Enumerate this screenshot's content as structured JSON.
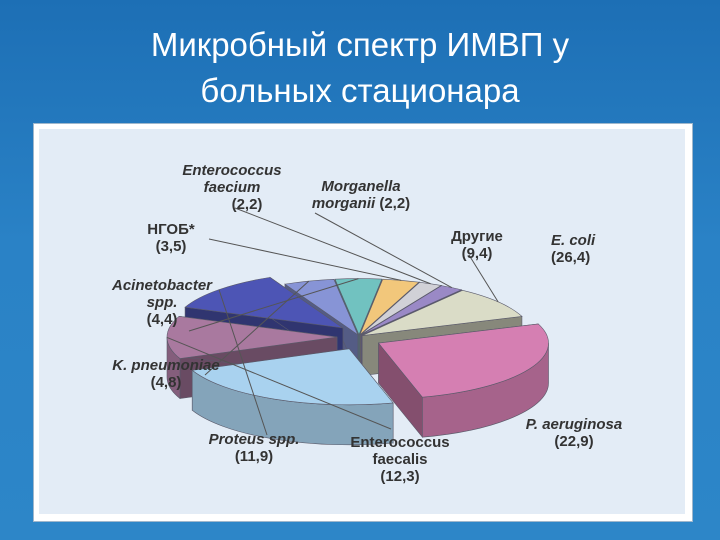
{
  "slide": {
    "title_line1": "Микробный спектр ИМВП у",
    "title_line2": "больных стационара"
  },
  "chart_data": {
    "type": "pie",
    "style": "3d-exploded",
    "slices": [
      {
        "label_lines": [
          "E. coli"
        ],
        "value": 26.4,
        "value_text": "(26,4)",
        "italic": true,
        "color": "#d57fb2"
      },
      {
        "label_lines": [
          "P. aeruginosa"
        ],
        "value": 22.9,
        "value_text": "(22,9)",
        "italic": true,
        "color": "#a9d2ef"
      },
      {
        "label_lines": [
          "Enterococcus",
          "faecalis"
        ],
        "value": 12.3,
        "value_text": "(12,3)",
        "italic": false,
        "color": "#a9799f"
      },
      {
        "label_lines": [
          "Proteus spp."
        ],
        "value": 11.9,
        "value_text": "(11,9)",
        "italic": true,
        "color": "#4d55b5"
      },
      {
        "label_lines": [
          "K. pneumoniae"
        ],
        "value": 4.8,
        "value_text": "(4,8)",
        "italic": true,
        "color": "#8794d6"
      },
      {
        "label_lines": [
          "Acinetobacter",
          "spp."
        ],
        "value": 4.4,
        "value_text": "(4,4)",
        "italic": true,
        "color": "#71c2c0"
      },
      {
        "label_lines": [
          "НГОБ*"
        ],
        "value": 3.5,
        "value_text": "(3,5)",
        "italic": false,
        "color": "#f2c77b"
      },
      {
        "label_lines": [
          "Enterococcus",
          "faecium"
        ],
        "value": 2.2,
        "value_text": "(2,2)",
        "italic": true,
        "color": "#d1d1d7"
      },
      {
        "label_lines": [
          "Morganella",
          "morganii"
        ],
        "value": 2.2,
        "value_text": "(2,2)",
        "italic": true,
        "color": "#9a89c6"
      },
      {
        "label_lines": [
          "Другие"
        ],
        "value": 9.4,
        "value_text": "(9,4)",
        "italic": false,
        "color": "#dadcc7"
      }
    ]
  }
}
